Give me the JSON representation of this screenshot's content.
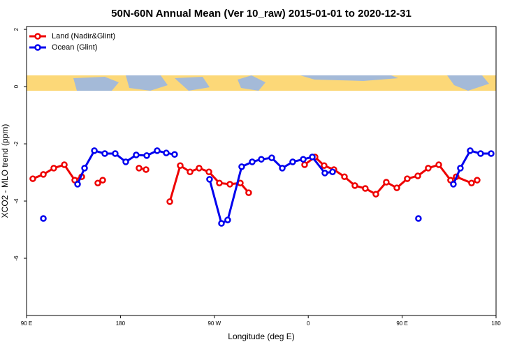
{
  "chart_data": {
    "type": "line",
    "title": "50N-60N Annual Mean (Ver 10_raw)   2015-01-01 to 2020-12-31",
    "xlabel": "Longitude (deg E)",
    "ylabel": "XCO2 - MLO trend (ppm)",
    "xlim": [
      90,
      540
    ],
    "ylim": [
      -8,
      2.1
    ],
    "xticks": [
      {
        "value": 90,
        "label": "90 E"
      },
      180,
      {
        "value": 270,
        "label": "90 W"
      },
      {
        "value": 360,
        "label": "0"
      },
      {
        "value": 450,
        "label": "90 E"
      },
      {
        "value": 540,
        "label": "180"
      }
    ],
    "yticks": [
      -6,
      -4,
      -2,
      0,
      2
    ],
    "grid": false,
    "legend": "top-left",
    "series": [
      {
        "name": "Land (Nadir&Glint)",
        "color": "#ee0000",
        "x": [
          96,
          106.1,
          116.1,
          126.2,
          136.2,
          142.9,
          null,
          158.3,
          163,
          null,
          197.8,
          204.5,
          null,
          227.3,
          237.3,
          246.7,
          255.4,
          264.8,
          274.8,
          284.9,
          294.9,
          302.9,
          null,
          356.5,
          366.5,
          375.2,
          384.6,
          394.7,
          404.7,
          414.7,
          424.8,
          434.8,
          444.9,
          454.9,
          465,
          475,
          485.1,
          496.4,
          501.8,
          516.5,
          521.9
        ],
        "values": [
          -3.22,
          -3.07,
          -2.85,
          -2.73,
          -3.27,
          -3.15,
          null,
          -3.37,
          -3.27,
          null,
          -2.85,
          -2.9,
          null,
          -4.02,
          -2.76,
          -2.98,
          -2.85,
          -2.98,
          -3.37,
          -3.41,
          -3.37,
          -3.71,
          null,
          -2.73,
          -2.46,
          -2.76,
          -2.9,
          -3.15,
          -3.46,
          -3.56,
          -3.76,
          -3.34,
          -3.54,
          -3.22,
          -3.12,
          -2.85,
          -2.73,
          -3.27,
          -3.15,
          -3.37,
          -3.27
        ]
      },
      {
        "name": "Ocean (Glint)",
        "color": "#0000ee",
        "x": [
          106.1,
          null,
          138.9,
          145.6,
          155,
          165,
          175,
          185.1,
          195.1,
          205.2,
          215.2,
          223.9,
          231.9,
          null,
          265.4,
          276.8,
          282.8,
          296.2,
          306.3,
          315,
          325,
          335.1,
          345.1,
          355.2,
          363.9,
          375.9,
          383.3,
          null,
          465.6,
          null,
          499.1,
          505.8,
          515.2,
          525.2,
          535.3
        ],
        "values": [
          -4.61,
          null,
          -3.41,
          -2.85,
          -2.24,
          -2.34,
          -2.34,
          -2.63,
          -2.39,
          -2.41,
          -2.24,
          -2.32,
          -2.37,
          null,
          -3.24,
          -4.78,
          -4.66,
          -2.8,
          -2.63,
          -2.54,
          -2.49,
          -2.85,
          -2.63,
          -2.54,
          -2.46,
          -3.02,
          -2.98,
          null,
          -4.61,
          null,
          -3.41,
          -2.85,
          -2.24,
          -2.34,
          -2.34
        ]
      }
    ]
  }
}
